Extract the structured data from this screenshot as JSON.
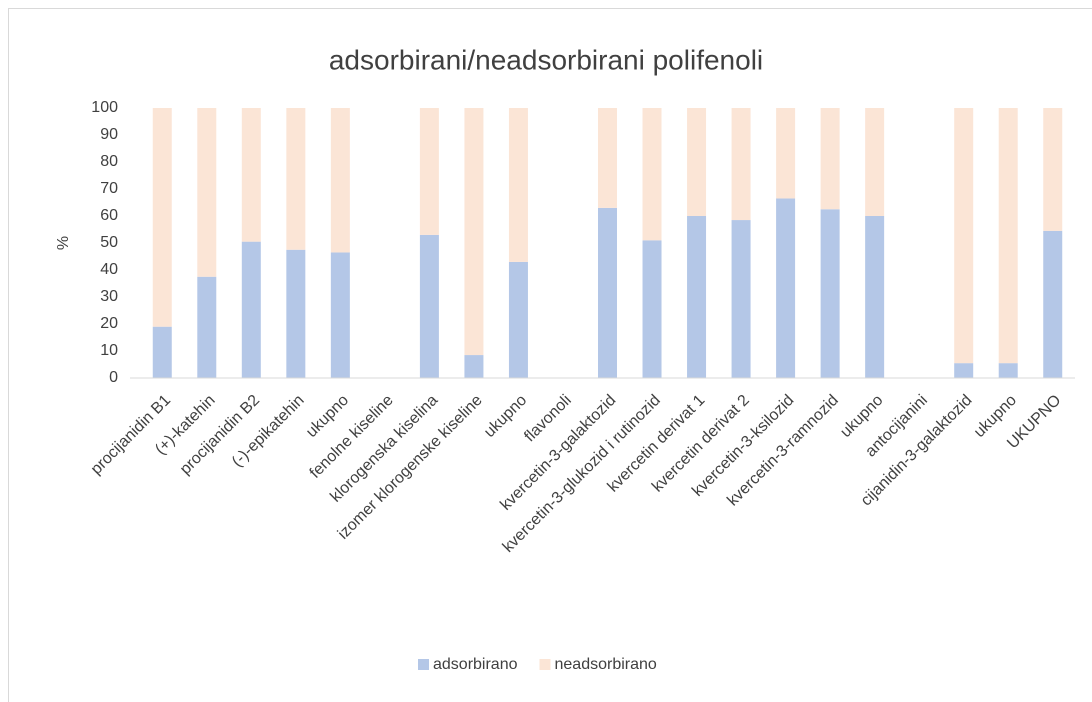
{
  "chart_data": {
    "type": "stacked_bar",
    "title": "adsorbirani/neadsorbirani polifenoli",
    "y_label": "%",
    "categories": [
      "procijanidin B1",
      "(+)-katehin",
      "procijanidin B2",
      "(-)-epikatehin",
      "ukupno",
      "fenolne kiseline",
      "klorogenska kiselina",
      "izomer klorogenske kiseline",
      "ukupno",
      "flavonoli",
      "kvercetin-3-galaktozid",
      "kvercetin-3-glukozid i rutinozid",
      "kvercetin derivat 1",
      "kvercetin derivat 2",
      "kvercetin-3-ksilozid",
      "kvercetin-3-ramnozid",
      "ukupno",
      "antocijanini",
      "cijanidin-3-galaktozid",
      "ukupno",
      "UKUPNO"
    ],
    "series": [
      {
        "name": "adsorbirano",
        "color": "#b4c7e7",
        "values": [
          19,
          37.5,
          50.5,
          47.5,
          46.5,
          null,
          53,
          8.5,
          43,
          null,
          63,
          51,
          60,
          58.5,
          66.5,
          62.5,
          60,
          null,
          5.5,
          5.5,
          54.5
        ]
      },
      {
        "name": "neadsorbirano",
        "color": "#fbe5d6",
        "values": [
          81,
          62.5,
          49.5,
          52.5,
          53.5,
          null,
          47,
          91.5,
          57,
          null,
          37,
          49,
          40,
          41.5,
          33.5,
          37.5,
          40,
          null,
          94.5,
          94.5,
          45.5
        ]
      }
    ],
    "ylim": [
      0,
      100
    ],
    "yticks": [
      0,
      10,
      20,
      30,
      40,
      50,
      60,
      70,
      80,
      90,
      100
    ],
    "legend": "bottom"
  }
}
